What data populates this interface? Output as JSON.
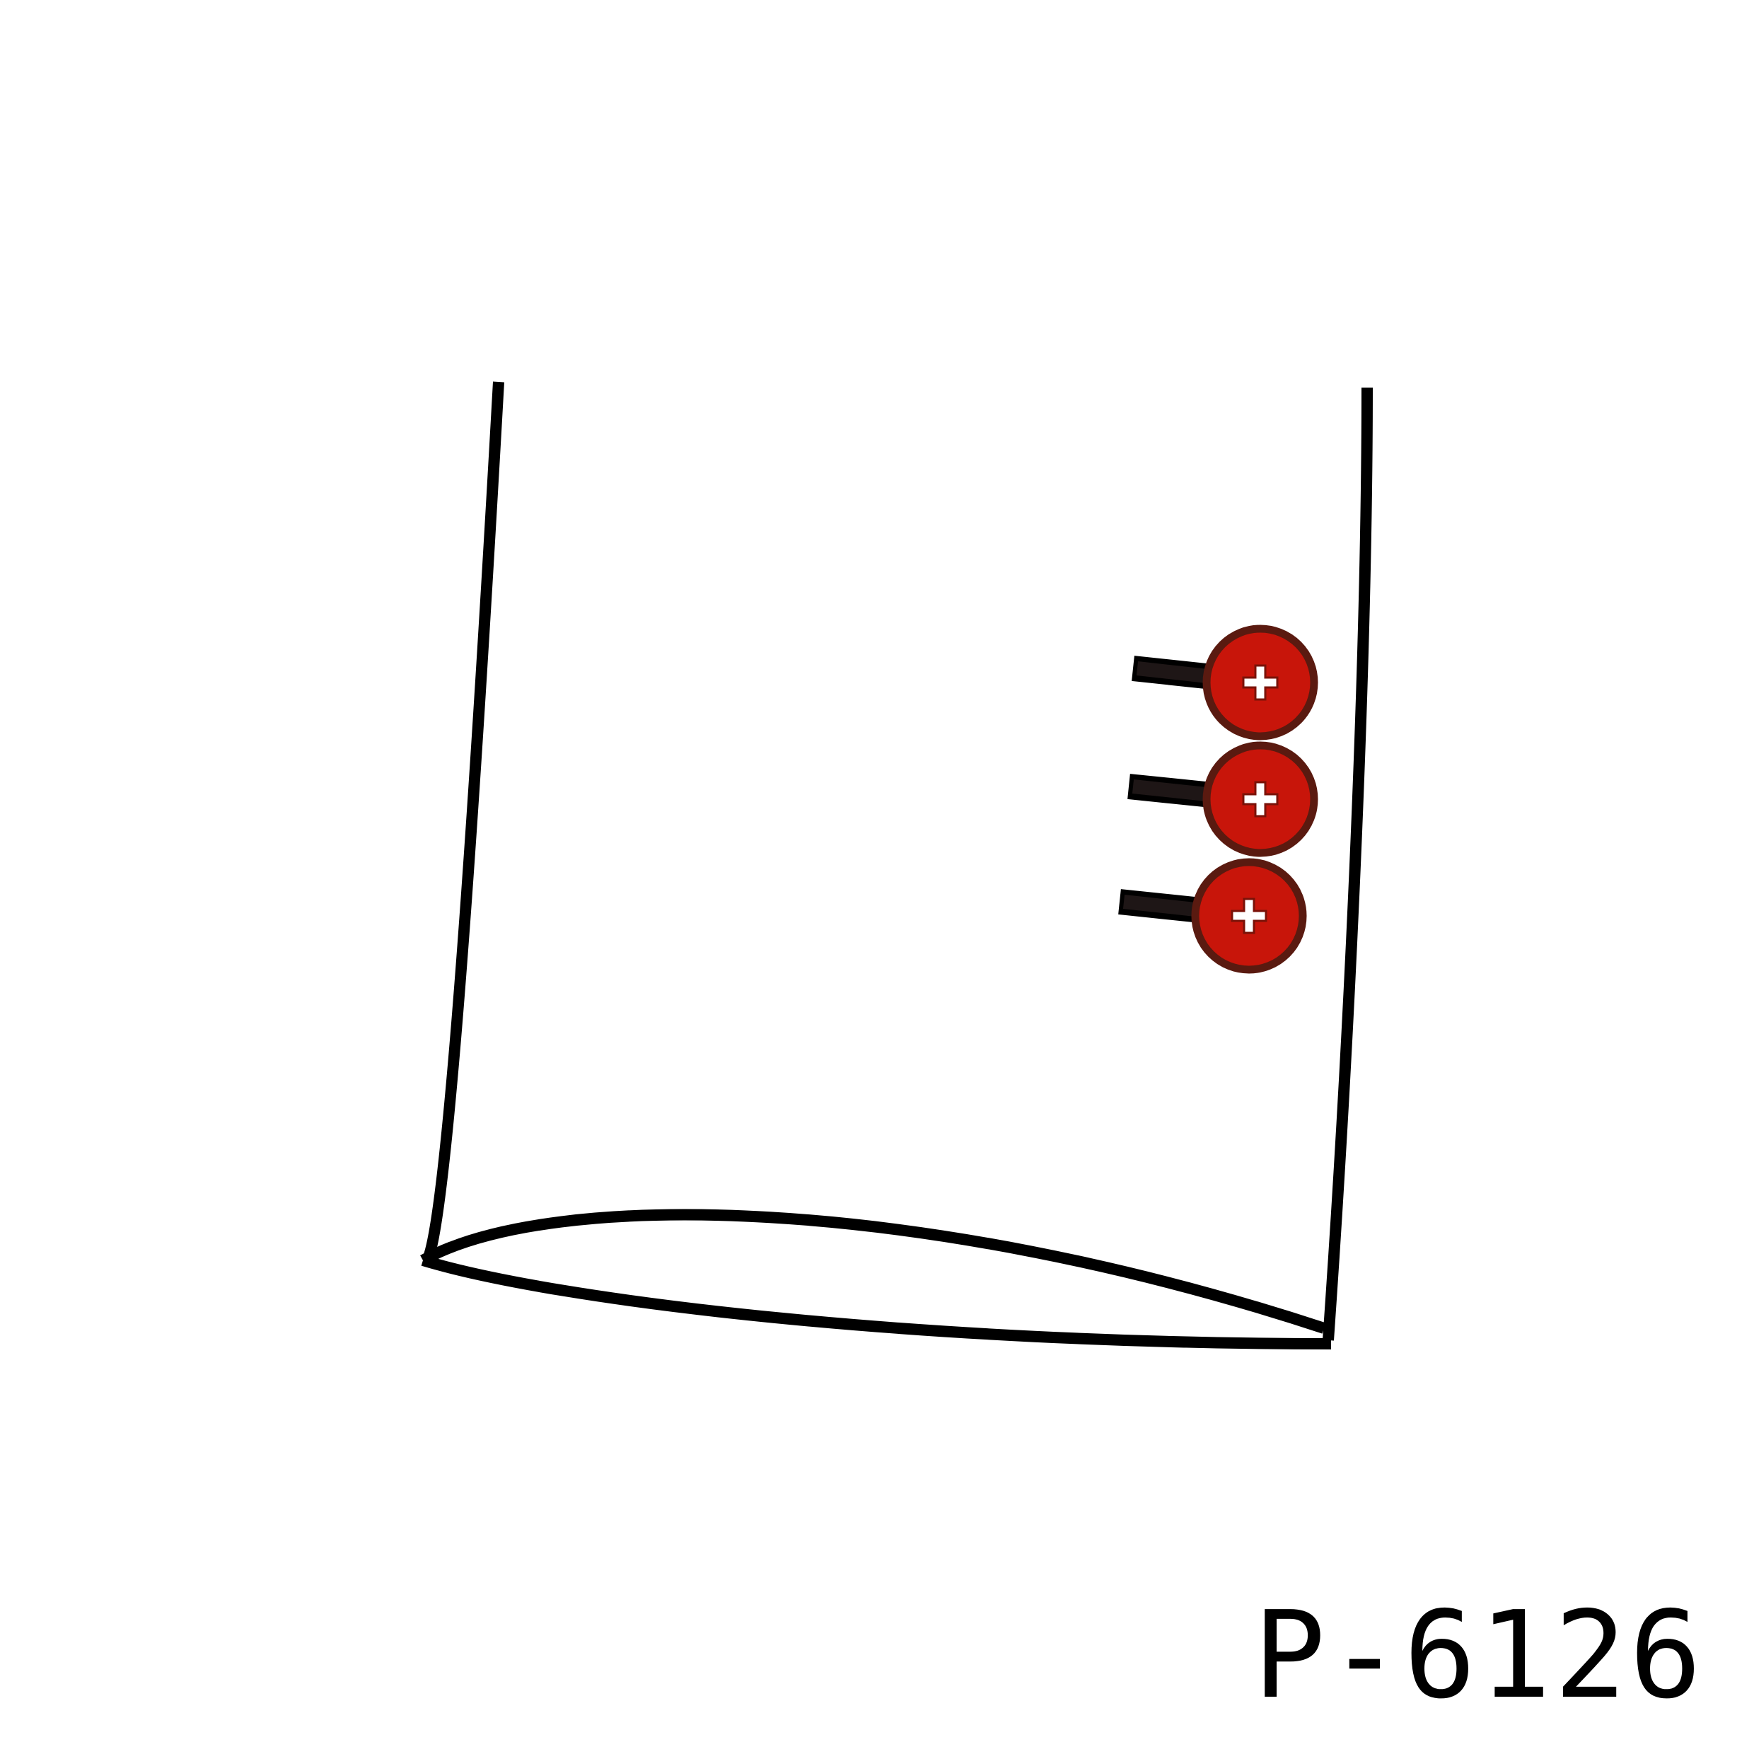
{
  "drawing": {
    "style_code": "P-6126",
    "button_count": 3,
    "colors": {
      "outline": "#000000",
      "button_fill": "#c8150a",
      "button_rim": "#5a1a10",
      "buttonhole": "#1e1616",
      "button_cross": "#ffffff"
    }
  }
}
